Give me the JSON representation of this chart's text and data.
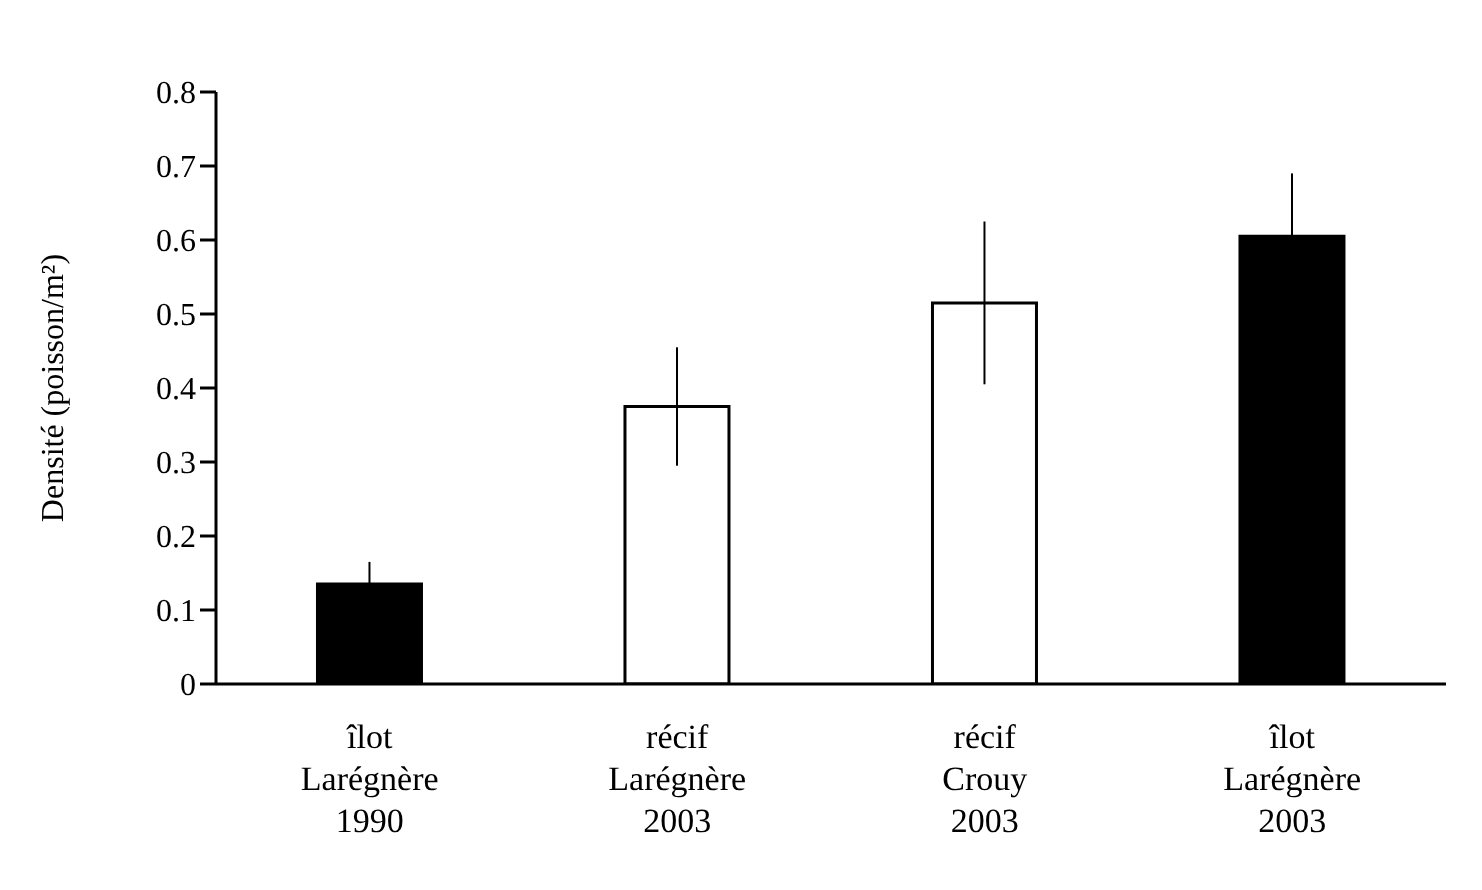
{
  "chart_data": {
    "type": "bar",
    "ylabel": "Densité (poisson/m²)",
    "categories": [
      "îlot\nLarégnère\n1990",
      "récif\nLarégnère\n2003",
      "récif\nCrouy\n2003",
      "îlot\nLarégnère\n2003"
    ],
    "values": [
      0.135,
      0.375,
      0.515,
      0.605
    ],
    "errors": [
      0.03,
      0.08,
      0.11,
      0.085
    ],
    "colors": [
      "#000000",
      "#ffffff",
      "#ffffff",
      "#000000"
    ],
    "ylim": [
      0,
      0.8
    ],
    "yticks": [
      0,
      0.1,
      0.2,
      0.3,
      0.4,
      0.5,
      0.6,
      0.7,
      0.8
    ],
    "grid": false,
    "legend": false
  }
}
